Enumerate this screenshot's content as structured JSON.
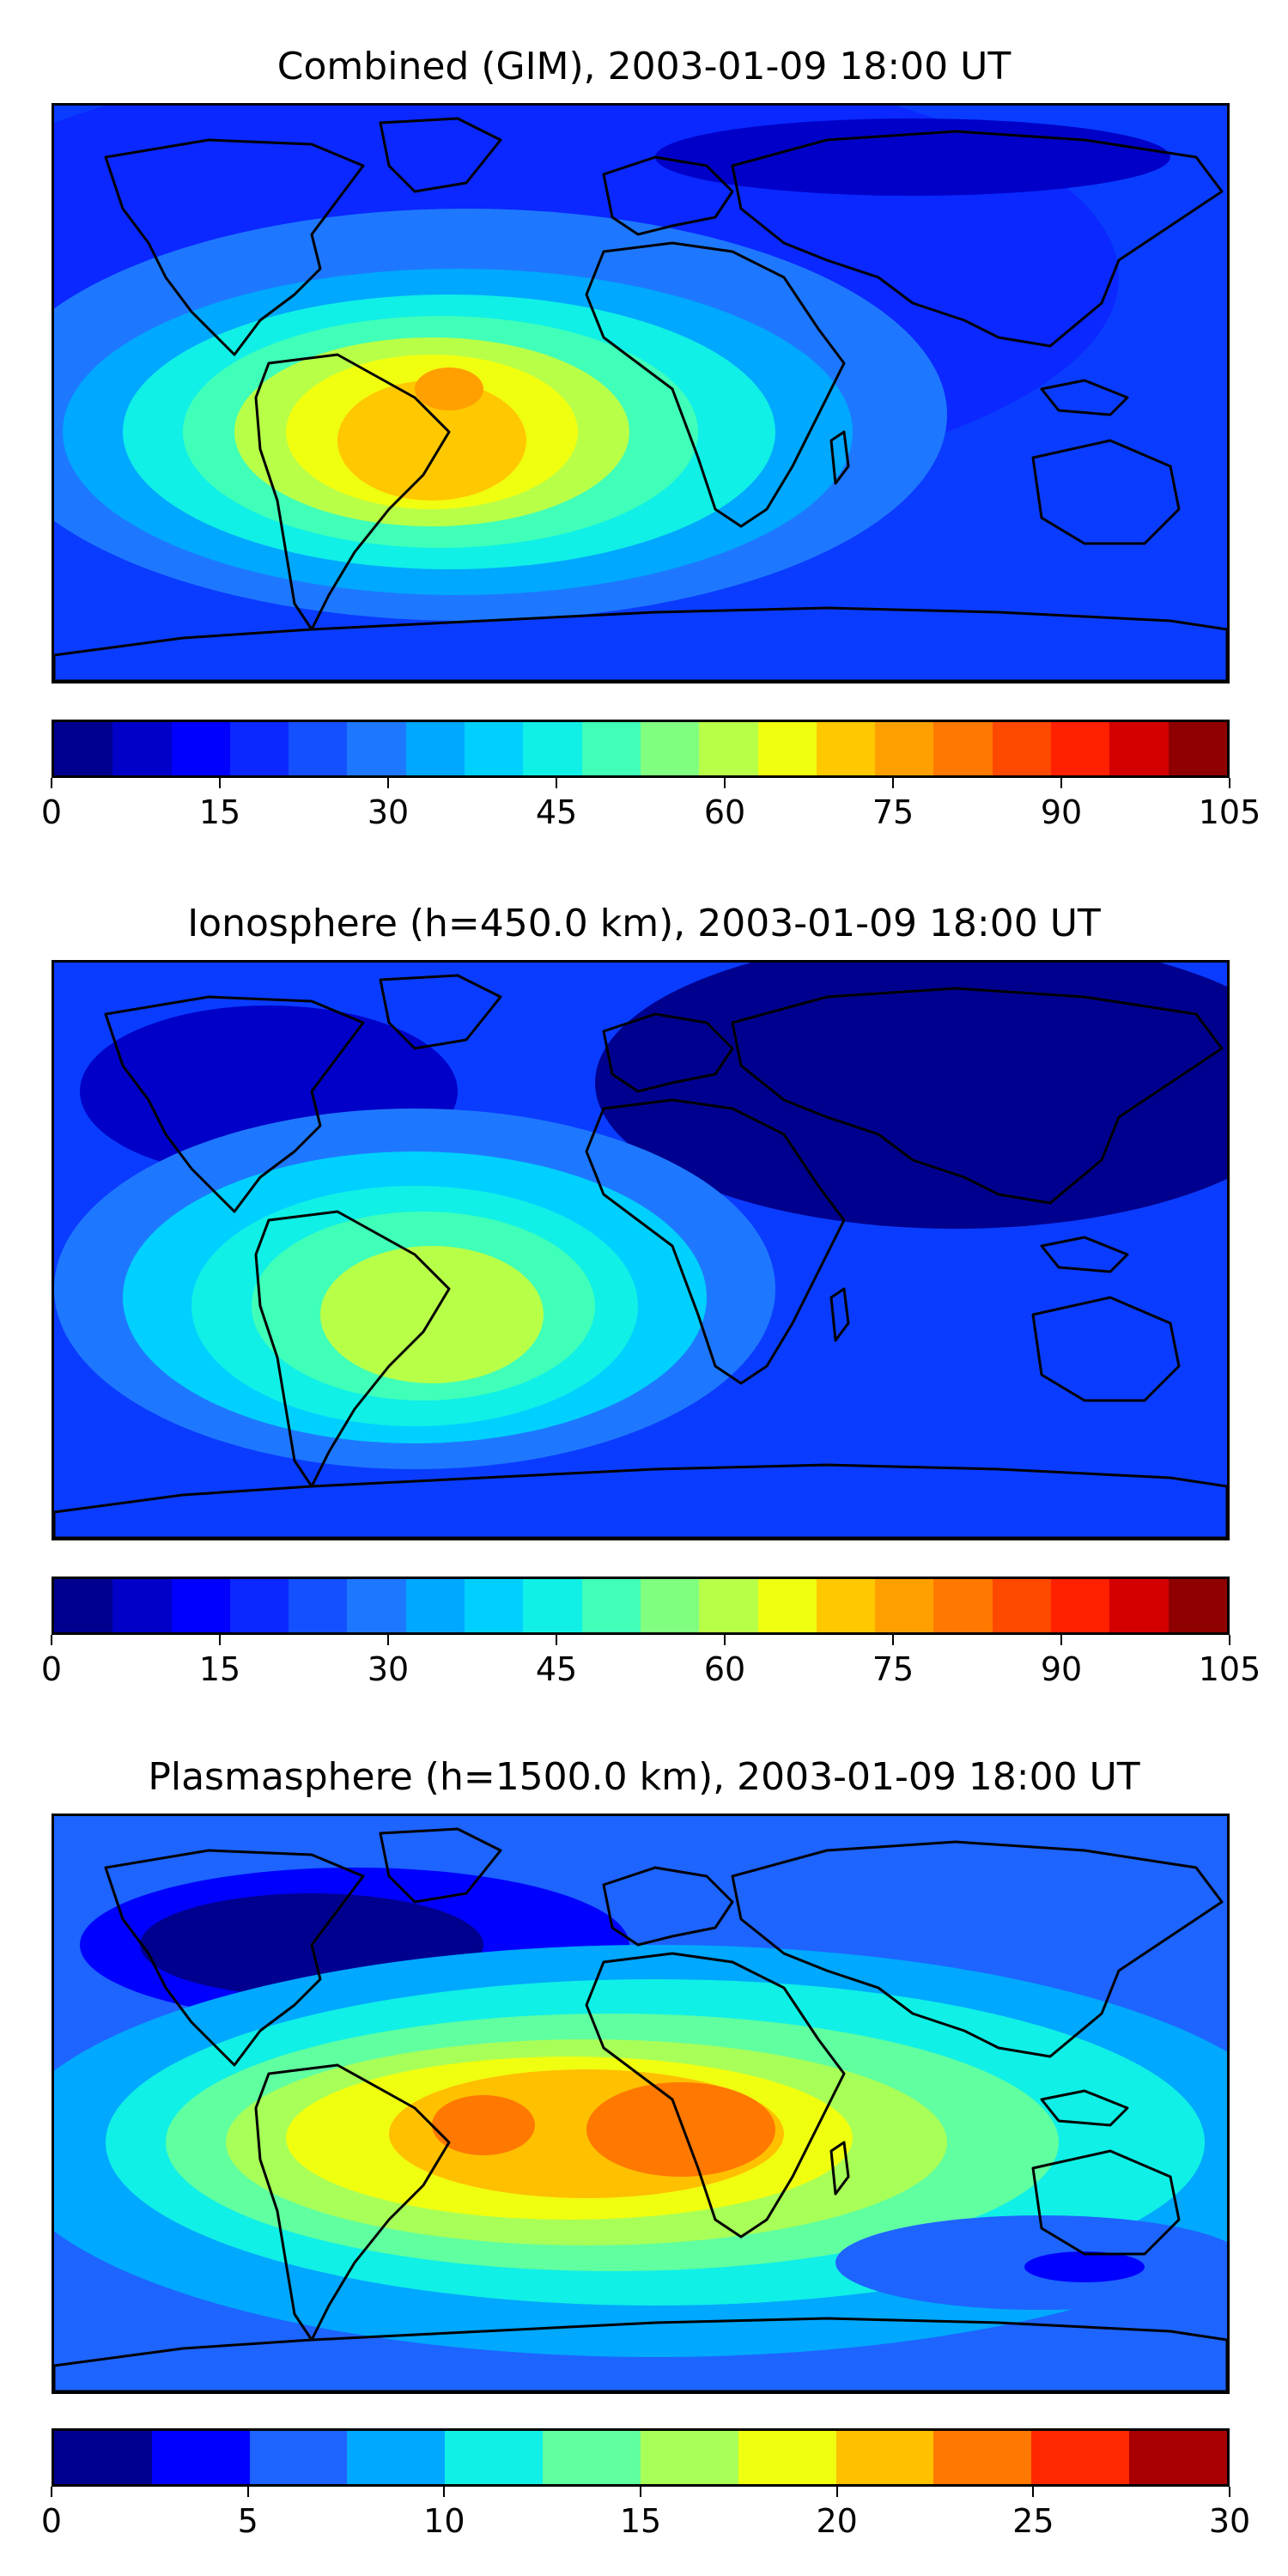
{
  "panels": [
    {
      "title": "Combined (GIM), 2003-01-09 18:00 UT",
      "colorbar": {
        "colors": [
          "#00008f",
          "#0000c8",
          "#0000ff",
          "#0a28ff",
          "#1450ff",
          "#1e78ff",
          "#00a8ff",
          "#00d0ff",
          "#10f0e6",
          "#40ffb8",
          "#80ff80",
          "#b8ff48",
          "#f0ff10",
          "#ffc800",
          "#ffa000",
          "#ff7800",
          "#ff4800",
          "#ff2000",
          "#d40000",
          "#8f0000"
        ],
        "ticks": [
          "0",
          "15",
          "30",
          "45",
          "60",
          "75",
          "90",
          "105"
        ],
        "range": [
          0,
          105
        ]
      },
      "field": {
        "background_color": "#0a3cff",
        "peak_region": "South America",
        "peak_value_approx": 80
      }
    },
    {
      "title": "Ionosphere  (h=450.0 km), 2003-01-09 18:00 UT",
      "colorbar": {
        "colors": [
          "#00008f",
          "#0000c8",
          "#0000ff",
          "#0a28ff",
          "#1450ff",
          "#1e78ff",
          "#00a8ff",
          "#00d0ff",
          "#10f0e6",
          "#40ffb8",
          "#80ff80",
          "#b8ff48",
          "#f0ff10",
          "#ffc800",
          "#ffa000",
          "#ff7800",
          "#ff4800",
          "#ff2000",
          "#d40000",
          "#8f0000"
        ],
        "ticks": [
          "0",
          "15",
          "30",
          "45",
          "60",
          "75",
          "90",
          "105"
        ],
        "range": [
          0,
          105
        ]
      },
      "field": {
        "background_color": "#0a3cff",
        "peak_region": "South America",
        "peak_value_approx": 60
      }
    },
    {
      "title": "Plasmasphere (h=1500.0 km), 2003-01-09 18:00 UT",
      "colorbar": {
        "colors": [
          "#00008f",
          "#0000ff",
          "#1e64ff",
          "#00a8ff",
          "#10f0e6",
          "#60ffa0",
          "#a8ff58",
          "#f0ff10",
          "#ffc000",
          "#ff7800",
          "#ff2800",
          "#a80000"
        ],
        "ticks": [
          "0",
          "5",
          "10",
          "15",
          "20",
          "25",
          "30"
        ],
        "range": [
          0,
          30
        ]
      },
      "field": {
        "background_color": "#1e64ff",
        "peak_region": "Central Africa",
        "peak_value_approx": 22
      }
    }
  ]
}
